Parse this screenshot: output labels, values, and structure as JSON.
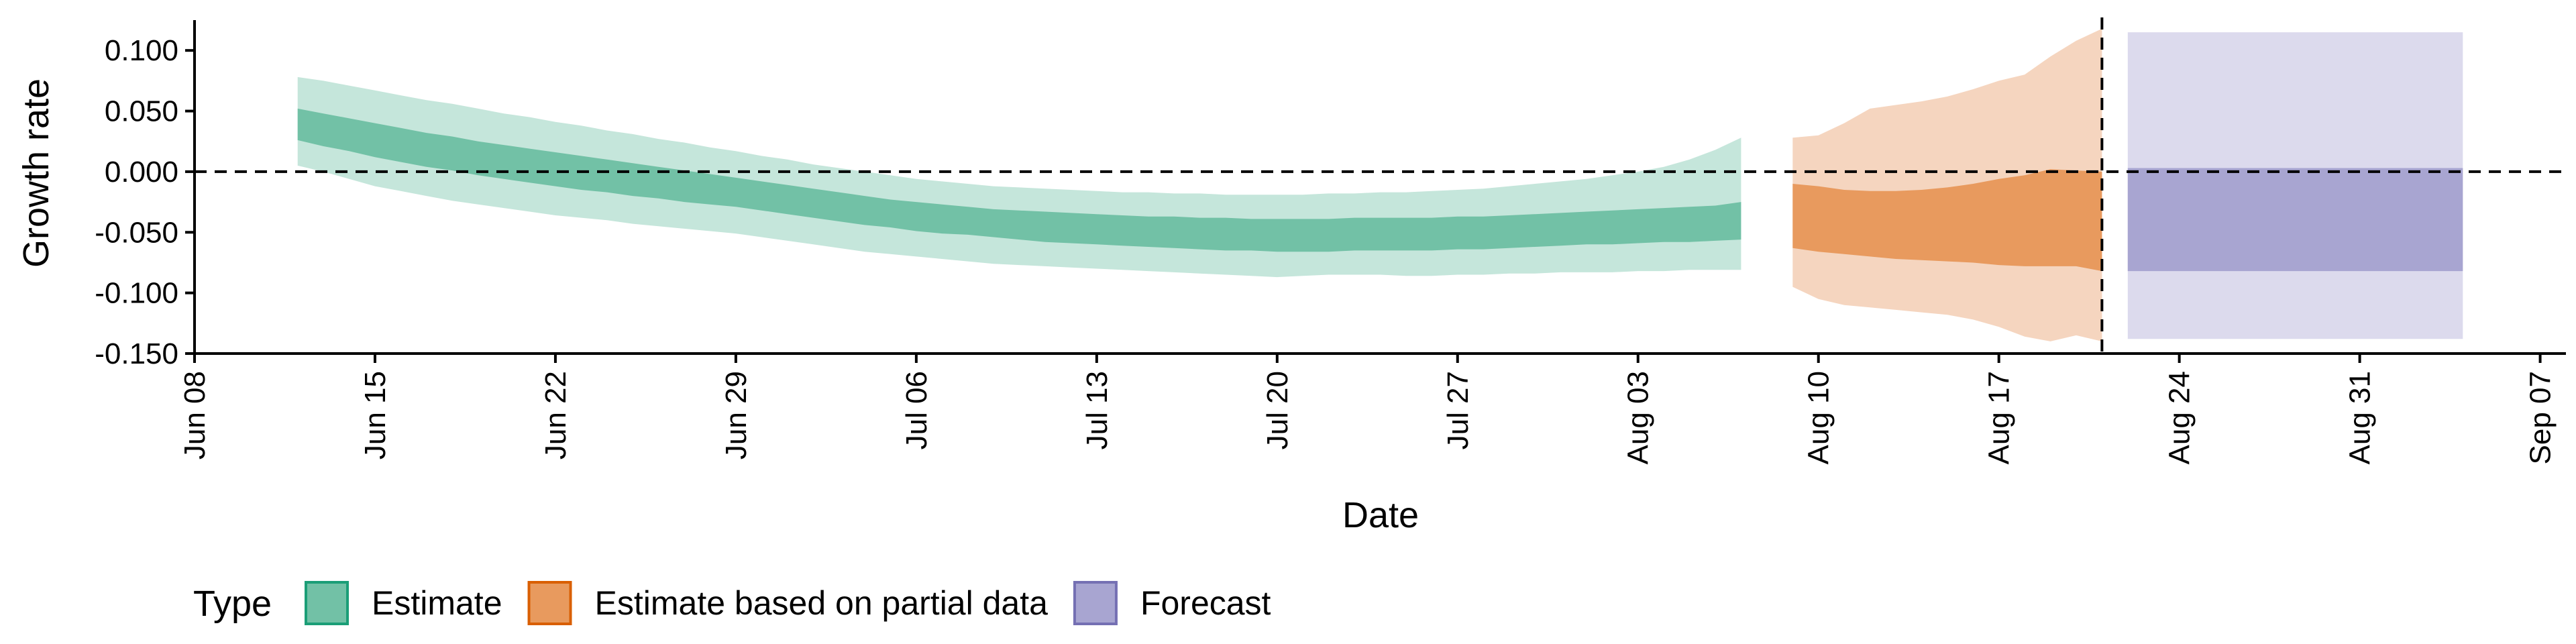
{
  "chart_data": {
    "type": "area",
    "xlabel": "Date",
    "ylabel": "Growth rate",
    "ylim": [
      -0.15,
      0.125
    ],
    "xlim": [
      "2020-06-08",
      "2020-09-08"
    ],
    "y_ticks": [
      "0.100",
      "0.050",
      "0.000",
      "-0.050",
      "-0.100",
      "-0.150"
    ],
    "y_tick_values": [
      0.1,
      0.05,
      0.0,
      -0.05,
      -0.1,
      -0.15
    ],
    "x_ticks": [
      "Jun 08",
      "Jun 15",
      "Jun 22",
      "Jun 29",
      "Jul 06",
      "Jul 13",
      "Jul 20",
      "Jul 27",
      "Aug 03",
      "Aug 10",
      "Aug 17",
      "Aug 24",
      "Aug 31",
      "Sep 07"
    ],
    "x_tick_dates": [
      "2020-06-08",
      "2020-06-15",
      "2020-06-22",
      "2020-06-29",
      "2020-07-06",
      "2020-07-13",
      "2020-07-20",
      "2020-07-27",
      "2020-08-03",
      "2020-08-10",
      "2020-08-17",
      "2020-08-24",
      "2020-08-31",
      "2020-09-07"
    ],
    "reference_lines": {
      "horizontal_y": 0.0,
      "vertical_date": "2020-08-21"
    },
    "grid": false,
    "legend": {
      "title": "Type",
      "position": "bottom-left",
      "items": [
        {
          "label": "Estimate",
          "color": "#1b9e77"
        },
        {
          "label": "Estimate based on partial data",
          "color": "#d95f02"
        },
        {
          "label": "Forecast",
          "color": "#7570b3"
        }
      ]
    },
    "series": [
      {
        "name": "Estimate",
        "color": "#1b9e77",
        "fill_inner": "#72c1a6",
        "fill_outer": "#c5e6db",
        "x": [
          "2020-06-12",
          "2020-06-13",
          "2020-06-14",
          "2020-06-15",
          "2020-06-16",
          "2020-06-17",
          "2020-06-18",
          "2020-06-19",
          "2020-06-20",
          "2020-06-21",
          "2020-06-22",
          "2020-06-23",
          "2020-06-24",
          "2020-06-25",
          "2020-06-26",
          "2020-06-27",
          "2020-06-28",
          "2020-06-29",
          "2020-06-30",
          "2020-07-01",
          "2020-07-02",
          "2020-07-03",
          "2020-07-04",
          "2020-07-05",
          "2020-07-06",
          "2020-07-07",
          "2020-07-08",
          "2020-07-09",
          "2020-07-10",
          "2020-07-11",
          "2020-07-12",
          "2020-07-13",
          "2020-07-14",
          "2020-07-15",
          "2020-07-16",
          "2020-07-17",
          "2020-07-18",
          "2020-07-19",
          "2020-07-20",
          "2020-07-21",
          "2020-07-22",
          "2020-07-23",
          "2020-07-24",
          "2020-07-25",
          "2020-07-26",
          "2020-07-27",
          "2020-07-28",
          "2020-07-29",
          "2020-07-30",
          "2020-07-31",
          "2020-08-01",
          "2020-08-02",
          "2020-08-03",
          "2020-08-04",
          "2020-08-05",
          "2020-08-06",
          "2020-08-07"
        ],
        "lower_90": [
          0.005,
          0.0,
          -0.006,
          -0.012,
          -0.016,
          -0.02,
          -0.024,
          -0.027,
          -0.03,
          -0.033,
          -0.036,
          -0.038,
          -0.04,
          -0.043,
          -0.045,
          -0.047,
          -0.049,
          -0.051,
          -0.054,
          -0.057,
          -0.06,
          -0.063,
          -0.066,
          -0.068,
          -0.07,
          -0.072,
          -0.074,
          -0.076,
          -0.077,
          -0.078,
          -0.079,
          -0.08,
          -0.081,
          -0.082,
          -0.083,
          -0.084,
          -0.085,
          -0.086,
          -0.087,
          -0.086,
          -0.085,
          -0.085,
          -0.085,
          -0.086,
          -0.086,
          -0.085,
          -0.085,
          -0.084,
          -0.084,
          -0.083,
          -0.083,
          -0.083,
          -0.082,
          -0.082,
          -0.081,
          -0.081,
          -0.081
        ],
        "lower_50": [
          0.026,
          0.021,
          0.017,
          0.012,
          0.008,
          0.004,
          0.001,
          -0.003,
          -0.006,
          -0.009,
          -0.012,
          -0.015,
          -0.017,
          -0.02,
          -0.022,
          -0.025,
          -0.027,
          -0.029,
          -0.032,
          -0.035,
          -0.038,
          -0.041,
          -0.044,
          -0.046,
          -0.049,
          -0.051,
          -0.052,
          -0.054,
          -0.056,
          -0.058,
          -0.059,
          -0.06,
          -0.061,
          -0.062,
          -0.063,
          -0.064,
          -0.065,
          -0.065,
          -0.066,
          -0.066,
          -0.066,
          -0.065,
          -0.065,
          -0.065,
          -0.065,
          -0.064,
          -0.064,
          -0.063,
          -0.062,
          -0.061,
          -0.06,
          -0.06,
          -0.059,
          -0.058,
          -0.058,
          -0.057,
          -0.056
        ],
        "upper_50": [
          0.052,
          0.048,
          0.044,
          0.04,
          0.036,
          0.032,
          0.029,
          0.025,
          0.022,
          0.019,
          0.016,
          0.013,
          0.01,
          0.007,
          0.004,
          0.001,
          -0.002,
          -0.005,
          -0.008,
          -0.011,
          -0.014,
          -0.017,
          -0.02,
          -0.023,
          -0.025,
          -0.027,
          -0.029,
          -0.031,
          -0.032,
          -0.033,
          -0.034,
          -0.035,
          -0.036,
          -0.037,
          -0.037,
          -0.038,
          -0.038,
          -0.039,
          -0.039,
          -0.039,
          -0.039,
          -0.038,
          -0.038,
          -0.038,
          -0.038,
          -0.037,
          -0.037,
          -0.036,
          -0.035,
          -0.034,
          -0.033,
          -0.032,
          -0.031,
          -0.03,
          -0.029,
          -0.028,
          -0.025
        ],
        "upper_90": [
          0.078,
          0.075,
          0.071,
          0.067,
          0.063,
          0.059,
          0.056,
          0.052,
          0.048,
          0.045,
          0.041,
          0.038,
          0.034,
          0.031,
          0.027,
          0.024,
          0.02,
          0.017,
          0.013,
          0.01,
          0.006,
          0.003,
          0.0,
          -0.003,
          -0.006,
          -0.008,
          -0.01,
          -0.012,
          -0.013,
          -0.014,
          -0.015,
          -0.016,
          -0.017,
          -0.017,
          -0.018,
          -0.018,
          -0.019,
          -0.019,
          -0.019,
          -0.019,
          -0.018,
          -0.018,
          -0.017,
          -0.017,
          -0.016,
          -0.015,
          -0.014,
          -0.012,
          -0.01,
          -0.008,
          -0.006,
          -0.003,
          0.0,
          0.004,
          0.01,
          0.018,
          0.028
        ]
      },
      {
        "name": "Estimate based on partial data",
        "color": "#d95f02",
        "fill_inner": "#e89a5e",
        "fill_outer": "#f5d5bf",
        "x": [
          "2020-08-09",
          "2020-08-10",
          "2020-08-11",
          "2020-08-12",
          "2020-08-13",
          "2020-08-14",
          "2020-08-15",
          "2020-08-16",
          "2020-08-17",
          "2020-08-18",
          "2020-08-19",
          "2020-08-20",
          "2020-08-21"
        ],
        "lower_90": [
          -0.095,
          -0.105,
          -0.11,
          -0.112,
          -0.114,
          -0.116,
          -0.118,
          -0.122,
          -0.128,
          -0.136,
          -0.14,
          -0.135,
          -0.14
        ],
        "lower_50": [
          -0.063,
          -0.066,
          -0.068,
          -0.07,
          -0.072,
          -0.073,
          -0.074,
          -0.075,
          -0.077,
          -0.078,
          -0.078,
          -0.078,
          -0.082
        ],
        "upper_50": [
          -0.01,
          -0.012,
          -0.015,
          -0.016,
          -0.016,
          -0.015,
          -0.013,
          -0.01,
          -0.006,
          -0.003,
          0.002,
          0.001,
          0.0
        ],
        "upper_90": [
          0.028,
          0.03,
          0.04,
          0.052,
          0.055,
          0.058,
          0.062,
          0.068,
          0.075,
          0.08,
          0.095,
          0.108,
          0.118
        ]
      },
      {
        "name": "Forecast",
        "color": "#7570b3",
        "fill_inner": "#a8a5d1",
        "fill_outer": "#dcdaed",
        "x": [
          "2020-08-22",
          "2020-09-04"
        ],
        "lower_90": [
          -0.138,
          -0.138
        ],
        "lower_50": [
          -0.082,
          -0.082
        ],
        "upper_50": [
          0.003,
          0.003
        ],
        "upper_90": [
          0.115,
          0.115
        ]
      }
    ]
  }
}
